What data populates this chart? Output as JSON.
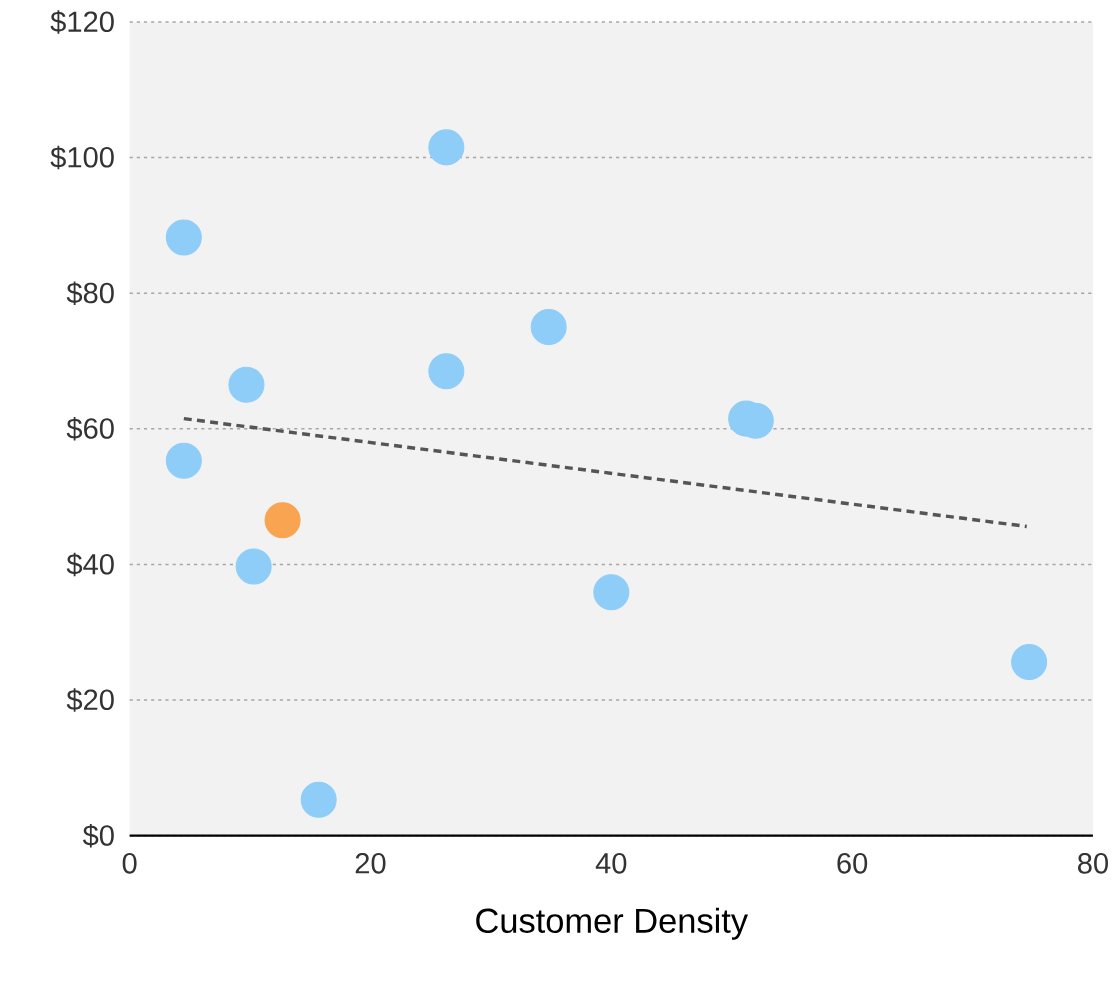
{
  "chart_data": {
    "type": "scatter",
    "xlabel": "Customer Density",
    "marker": "circle",
    "grid": "y",
    "xlim": [
      0,
      80
    ],
    "ylim": [
      0,
      120
    ],
    "xticks": [
      0,
      20,
      40,
      60,
      80
    ],
    "yticks": [
      {
        "value": 0,
        "label": "$0"
      },
      {
        "value": 20,
        "label": "$20"
      },
      {
        "value": 40,
        "label": "$40"
      },
      {
        "value": 60,
        "label": "$60"
      },
      {
        "value": 80,
        "label": "$80"
      },
      {
        "value": 100,
        "label": "$100"
      },
      {
        "value": 120,
        "label": "$120"
      }
    ],
    "series": [
      {
        "x": [
          4.5,
          26.3,
          4.5,
          9.7,
          10.3,
          12.7,
          15.7,
          26.3,
          34.8,
          40,
          51.2,
          52,
          74.7
        ],
        "values": [
          88.2,
          101.5,
          55.3,
          66.5,
          39.7,
          46.5,
          5.3,
          68.5,
          75,
          35.9,
          61.5,
          61.2,
          25.6
        ],
        "colors": [
          "#8ecdf8",
          "#8ecdf8",
          "#8ecdf8",
          "#8ecdf8",
          "#8ecdf8",
          "#f9a451",
          "#8ecdf8",
          "#8ecdf8",
          "#8ecdf8",
          "#8ecdf8",
          "#8ecdf8",
          "#8ecdf8",
          "#8ecdf8"
        ]
      },
      {
        "type": "line",
        "x": [
          4.5,
          74.5
        ],
        "values": [
          61.5,
          45.6
        ],
        "color": "#555555",
        "line_style": "dashed",
        "marker": "none"
      }
    ]
  }
}
